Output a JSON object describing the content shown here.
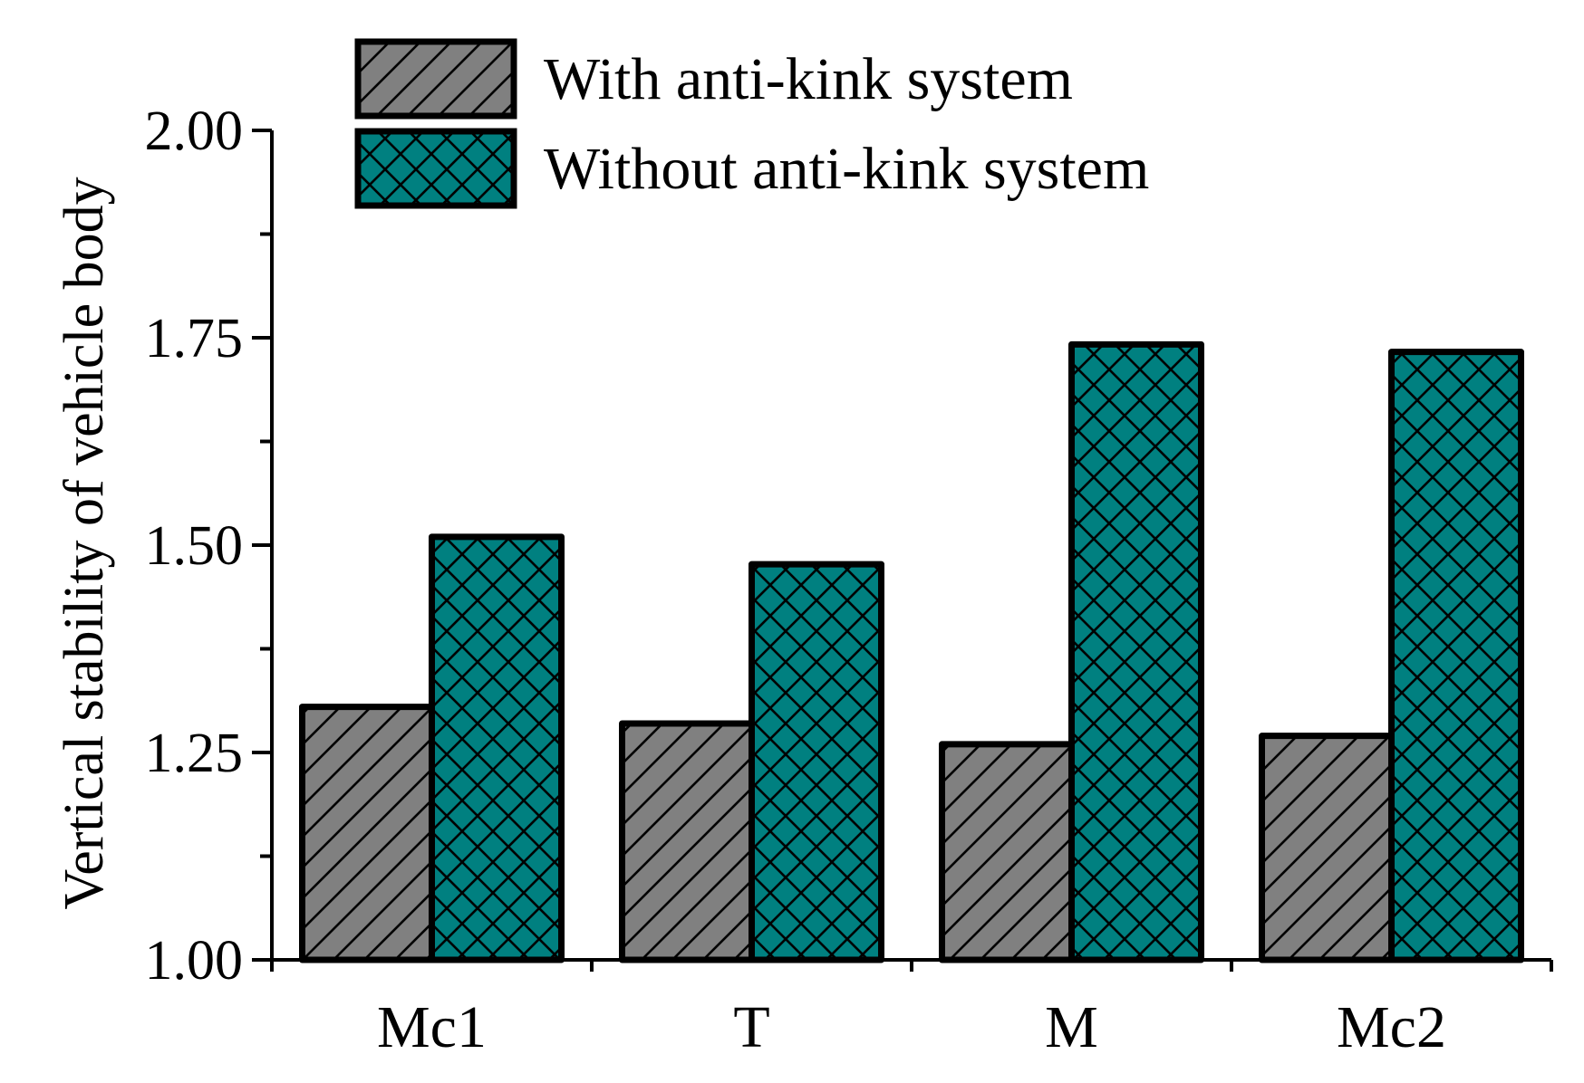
{
  "chart_data": {
    "type": "bar",
    "title": "",
    "xlabel": "",
    "ylabel": "Vertical stability of vehicle body",
    "categories": [
      "Mc1",
      "T",
      "M",
      "Mc2"
    ],
    "ylim": [
      1.0,
      2.0
    ],
    "yticks": [
      1.0,
      1.25,
      1.5,
      1.75,
      2.0
    ],
    "ytick_labels": [
      "1.00",
      "1.25",
      "1.50",
      "1.75",
      "2.00"
    ],
    "grid": false,
    "legend_position": "top-left",
    "series": [
      {
        "name": "With anti-kink system",
        "values": [
          1.305,
          1.285,
          1.26,
          1.27
        ],
        "color": "#808080",
        "pattern": "diagonal-hatch"
      },
      {
        "name": "Without anti-kink system",
        "values": [
          1.51,
          1.477,
          1.742,
          1.733
        ],
        "color": "#008080",
        "pattern": "cross-hatch"
      }
    ]
  }
}
